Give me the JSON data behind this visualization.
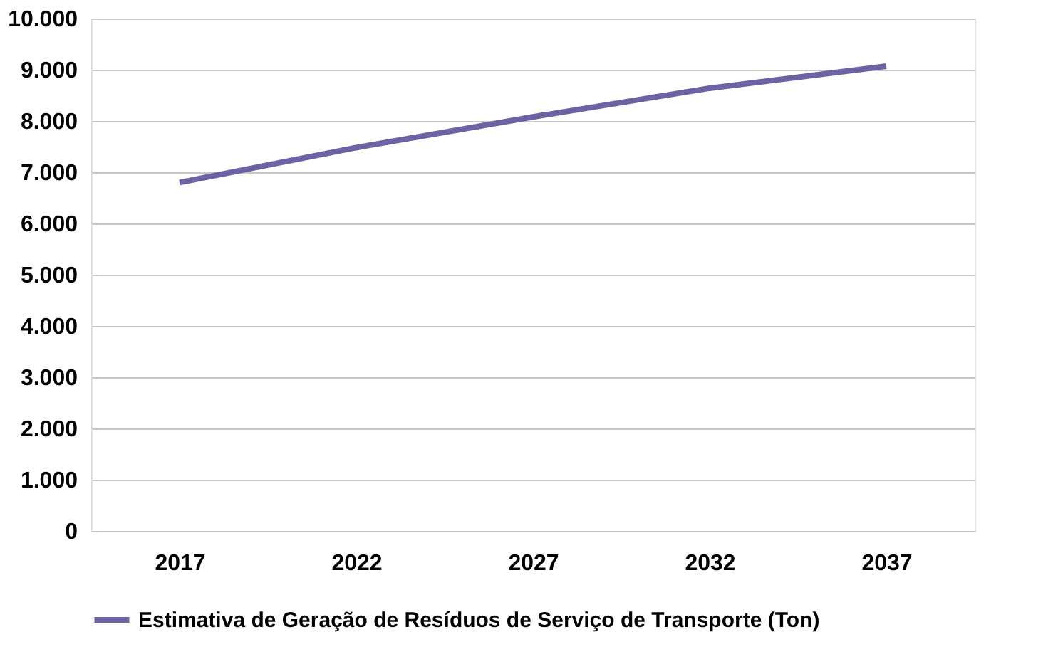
{
  "chart_data": {
    "type": "line",
    "categories": [
      "2017",
      "2022",
      "2027",
      "2032",
      "2037"
    ],
    "series": [
      {
        "name": "Estimativa de Geração de Resíduos de Serviço de Transporte (Ton)",
        "color": "#6b64a3",
        "values": [
          6800,
          7480,
          8080,
          8640,
          9070
        ]
      }
    ],
    "ylim": [
      0,
      10000
    ],
    "yticks": [
      0,
      {
        "value": 1000,
        "label": "1.000"
      },
      {
        "value": 2000,
        "label": "2.000"
      },
      {
        "value": 3000,
        "label": "3.000"
      },
      {
        "value": 4000,
        "label": "4.000"
      },
      {
        "value": 5000,
        "label": "5.000"
      },
      {
        "value": 6000,
        "label": "6.000"
      },
      {
        "value": 7000,
        "label": "7.000"
      },
      {
        "value": 8000,
        "label": "8.000"
      },
      {
        "value": 9000,
        "label": "9.000"
      },
      {
        "value": 10000,
        "label": "10.000"
      }
    ],
    "grid": "y",
    "legend": "bottom",
    "marker": "none",
    "line_style": "solid"
  }
}
